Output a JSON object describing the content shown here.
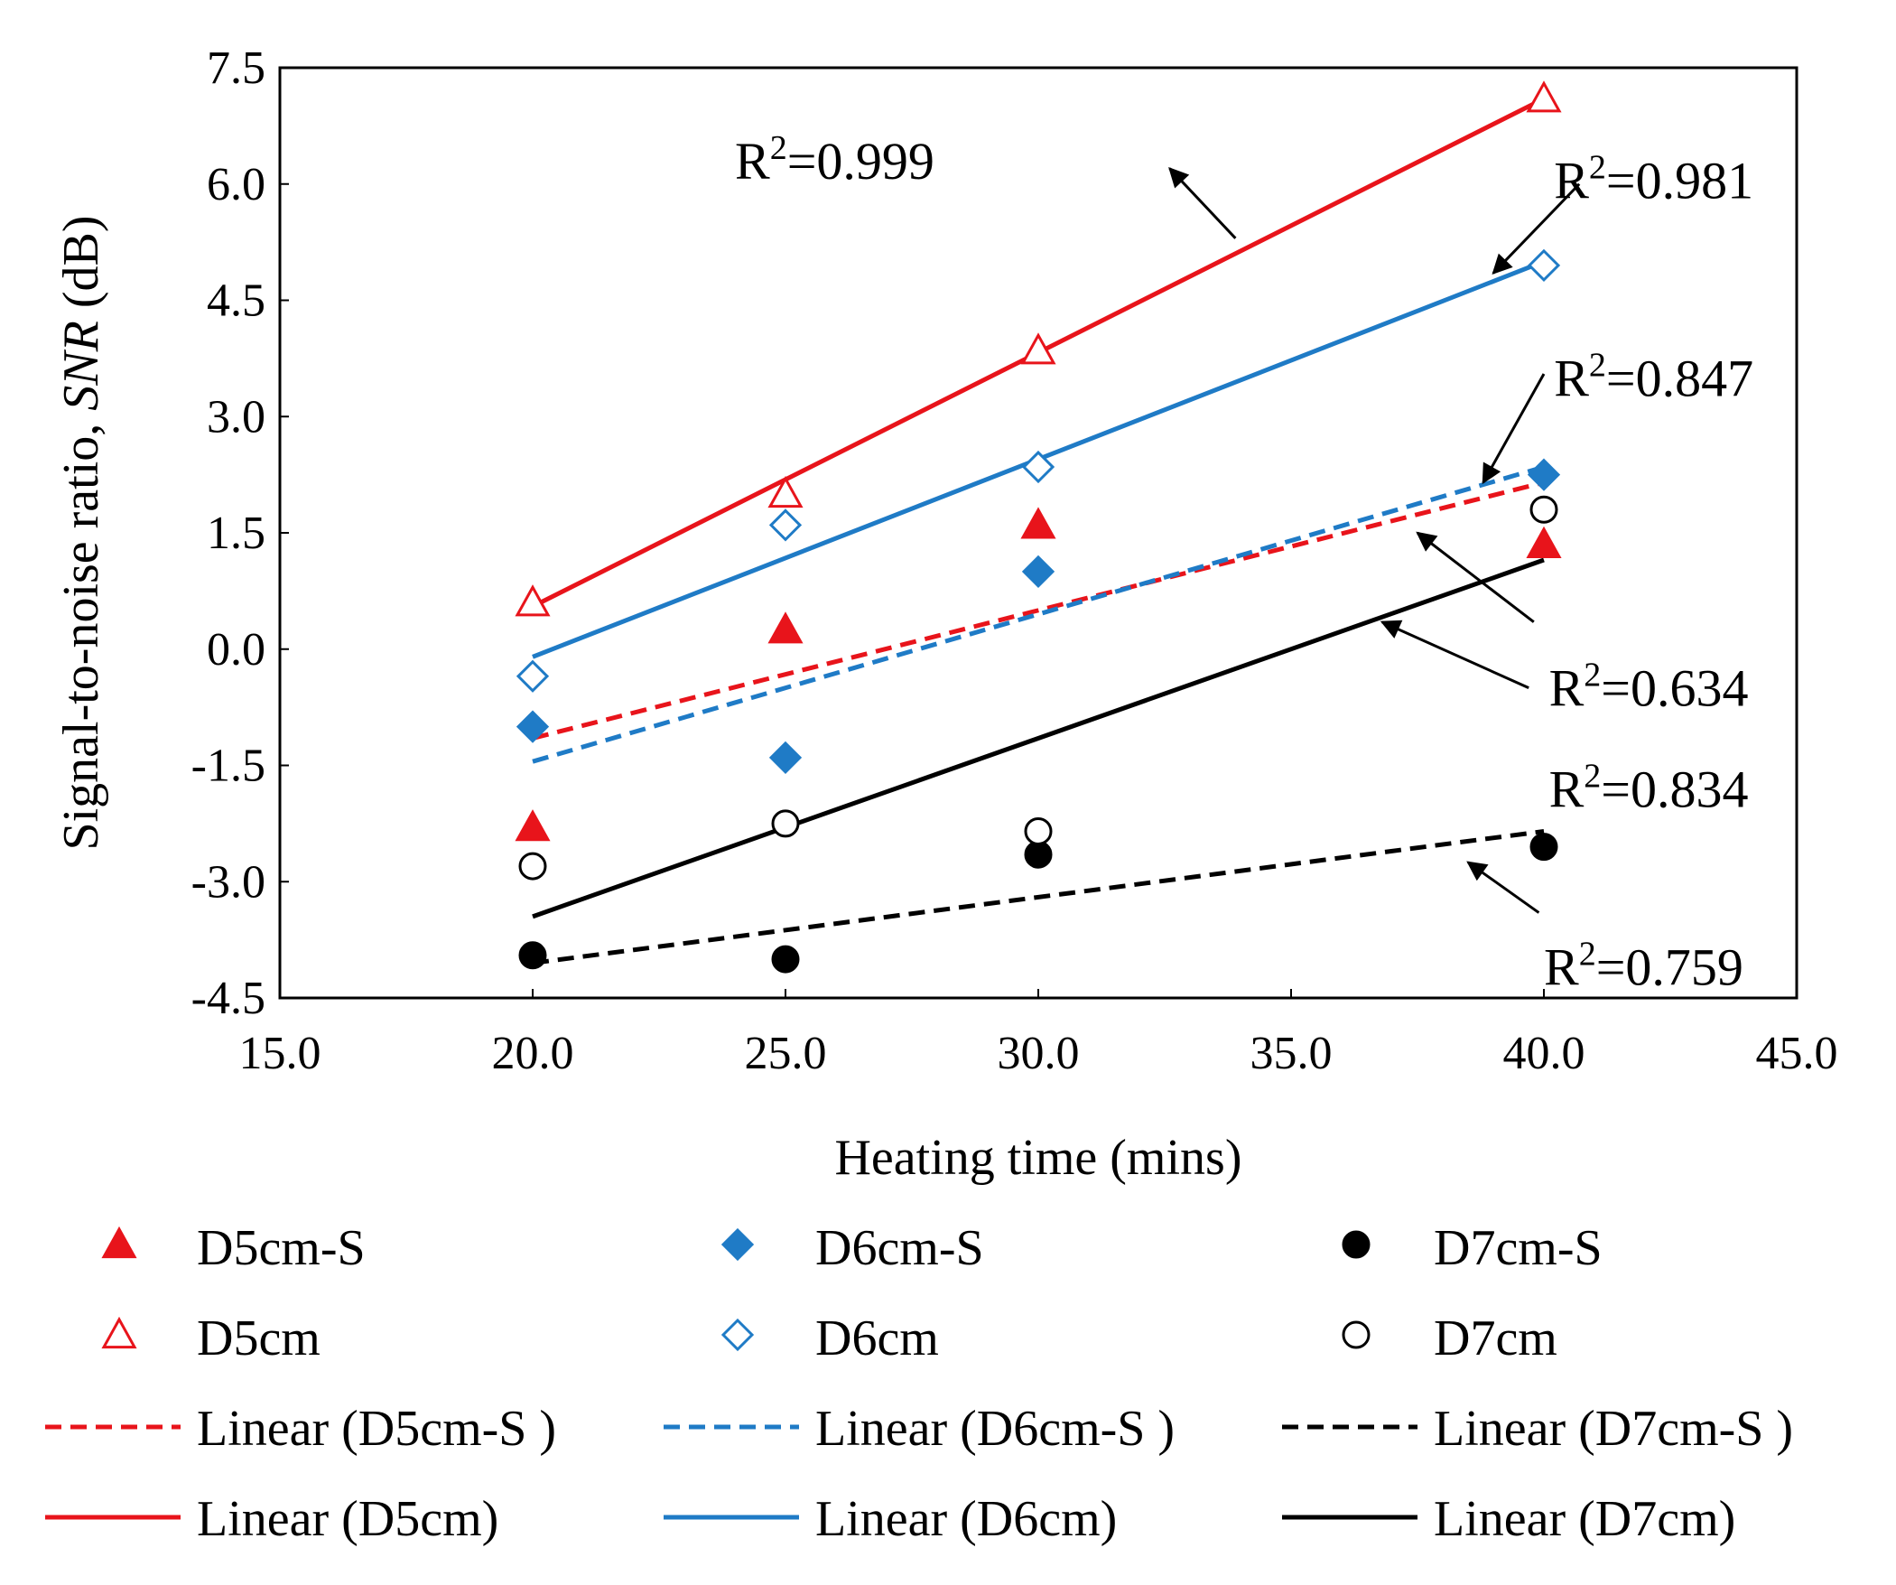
{
  "chart_data": {
    "type": "scatter",
    "xlabel": "Heating  time  (mins)",
    "ylabel_prefix": "Signal-to-noise  ratio,  ",
    "ylabel_italic": "SNR",
    "ylabel_suffix": " (dB)",
    "xlim": [
      15.0,
      45.0
    ],
    "ylim": [
      -4.5,
      7.5
    ],
    "x_ticks": [
      15.0,
      20.0,
      25.0,
      30.0,
      35.0,
      40.0,
      45.0
    ],
    "x_tick_labels": [
      "15.0",
      "20.0",
      "25.0",
      "30.0",
      "35.0",
      "40.0",
      "45.0"
    ],
    "y_ticks": [
      7.5,
      6.0,
      4.5,
      3.0,
      1.5,
      0.0,
      -1.5,
      -3.0,
      -4.5
    ],
    "y_tick_labels": [
      "7.5",
      "6.0",
      "4.5",
      "3.0",
      "1.5",
      "0.0",
      "-1.5",
      "-3.0",
      "-4.5"
    ],
    "grid": false,
    "legend_position": "bottom",
    "series": [
      {
        "name": "D5cm-S",
        "marker": "triangle",
        "filled": true,
        "color": "#e8141b",
        "x": [
          20,
          25,
          30,
          40
        ],
        "y": [
          -2.3,
          0.25,
          1.6,
          1.35
        ]
      },
      {
        "name": "D6cm-S",
        "marker": "diamond",
        "filled": true,
        "color": "#1f7bc6",
        "x": [
          20,
          25,
          30,
          40
        ],
        "y": [
          -1.0,
          -1.4,
          1.0,
          2.25
        ]
      },
      {
        "name": "D7cm-S",
        "marker": "circle",
        "filled": true,
        "color": "#000000",
        "x": [
          20,
          25,
          30,
          40
        ],
        "y": [
          -3.95,
          -4.0,
          -2.65,
          -2.55
        ]
      },
      {
        "name": "D5cm",
        "marker": "triangle",
        "filled": false,
        "color": "#e8141b",
        "x": [
          20,
          25,
          30,
          40
        ],
        "y": [
          0.6,
          2.0,
          3.85,
          7.1
        ]
      },
      {
        "name": "D6cm",
        "marker": "diamond",
        "filled": false,
        "color": "#1f7bc6",
        "x": [
          20,
          25,
          30,
          40
        ],
        "y": [
          -0.35,
          1.6,
          2.35,
          4.95
        ]
      },
      {
        "name": "D7cm",
        "marker": "circle",
        "filled": false,
        "color": "#000000",
        "x": [
          20,
          25,
          30,
          40
        ],
        "y": [
          -2.8,
          -2.25,
          -2.35,
          1.8
        ]
      }
    ],
    "trendlines": [
      {
        "name": "Linear (D5cm-S )",
        "style": "dashed",
        "color": "#e8141b",
        "x": [
          20,
          40
        ],
        "y": [
          -1.15,
          2.15
        ]
      },
      {
        "name": "Linear (D6cm-S )",
        "style": "dashed",
        "color": "#1f7bc6",
        "x": [
          20,
          40
        ],
        "y": [
          -1.45,
          2.35
        ]
      },
      {
        "name": "Linear (D7cm-S )",
        "style": "dashed",
        "color": "#000000",
        "x": [
          20,
          40
        ],
        "y": [
          -4.05,
          -2.35
        ]
      },
      {
        "name": "Linear (D5cm)",
        "style": "solid",
        "color": "#e8141b",
        "x": [
          20,
          40
        ],
        "y": [
          0.55,
          7.1
        ]
      },
      {
        "name": "Linear (D6cm)",
        "style": "solid",
        "color": "#1f7bc6",
        "x": [
          20,
          40
        ],
        "y": [
          -0.1,
          5.0
        ]
      },
      {
        "name": "Linear (D7cm)",
        "style": "solid",
        "color": "#000000",
        "x": [
          20,
          40
        ],
        "y": [
          -3.45,
          1.15
        ]
      }
    ],
    "annotations": [
      {
        "base": "R",
        "sup": "2",
        "rest": "=0.999",
        "arrow_from": [
          33.9,
          5.3
        ],
        "arrow_to": [
          32.6,
          6.2
        ],
        "label_at": [
          24.0,
          6.3
        ]
      },
      {
        "base": "R",
        "sup": "2",
        "rest": "=0.981",
        "arrow_from": [
          40.7,
          6.0
        ],
        "arrow_to": [
          39.0,
          4.85
        ],
        "label_at": [
          40.2,
          6.05
        ]
      },
      {
        "base": "R",
        "sup": "2",
        "rest": "=0.847",
        "arrow_from": [
          40.0,
          3.55
        ],
        "arrow_to": [
          38.8,
          2.15
        ],
        "label_at": [
          40.2,
          3.5
        ]
      },
      {
        "base": "R",
        "sup": "2",
        "rest": "=0.634",
        "arrow_from": [
          39.8,
          0.35
        ],
        "arrow_to": [
          37.5,
          1.5
        ],
        "label_at": [
          40.1,
          -0.5
        ]
      },
      {
        "base": "R",
        "sup": "2",
        "rest": "=0.834",
        "arrow_from": [
          39.7,
          -0.5
        ],
        "arrow_to": [
          36.8,
          0.35
        ],
        "label_at": [
          40.1,
          -1.8
        ]
      },
      {
        "base": "R",
        "sup": "2",
        "rest": "=0.759",
        "arrow_from": [
          39.9,
          -3.4
        ],
        "arrow_to": [
          38.5,
          -2.75
        ],
        "label_at": [
          40.0,
          -4.1
        ]
      }
    ],
    "legend": [
      {
        "label": "D5cm-S",
        "kind": "marker",
        "series": 0
      },
      {
        "label": "D6cm-S",
        "kind": "marker",
        "series": 1
      },
      {
        "label": "D7cm-S",
        "kind": "marker",
        "series": 2
      },
      {
        "label": "D5cm",
        "kind": "marker",
        "series": 3
      },
      {
        "label": "D6cm",
        "kind": "marker",
        "series": 4
      },
      {
        "label": "D7cm",
        "kind": "marker",
        "series": 5
      },
      {
        "label": "Linear (D5cm-S )",
        "kind": "line",
        "trend": 0
      },
      {
        "label": "Linear (D6cm-S )",
        "kind": "line",
        "trend": 1
      },
      {
        "label": "Linear (D7cm-S )",
        "kind": "line",
        "trend": 2
      },
      {
        "label": "Linear (D5cm)",
        "kind": "line",
        "trend": 3
      },
      {
        "label": "Linear (D6cm)",
        "kind": "line",
        "trend": 4
      },
      {
        "label": "Linear (D7cm)",
        "kind": "line",
        "trend": 5
      }
    ]
  }
}
